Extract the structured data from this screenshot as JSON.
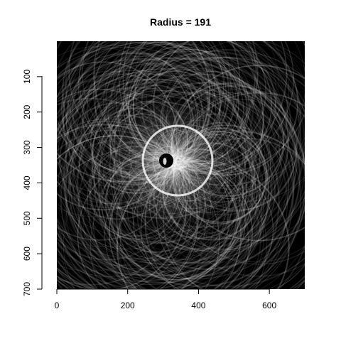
{
  "chart_data": {
    "type": "heatmap",
    "title": "Radius = 191",
    "xlabel": "",
    "ylabel": "",
    "xlim": [
      0,
      700
    ],
    "ylim": [
      700,
      0
    ],
    "x_ticks": [
      {
        "value": 0,
        "label": "0"
      },
      {
        "value": 200,
        "label": "200"
      },
      {
        "value": 400,
        "label": "400"
      },
      {
        "value": 600,
        "label": "600"
      }
    ],
    "y_ticks": [
      {
        "value": 100,
        "label": "100"
      },
      {
        "value": 200,
        "label": "200"
      },
      {
        "value": 300,
        "label": "300"
      },
      {
        "value": 400,
        "label": "400"
      },
      {
        "value": 500,
        "label": "500"
      },
      {
        "value": 600,
        "label": "600"
      },
      {
        "value": 700,
        "label": "700"
      }
    ],
    "colors": {
      "background": "#000000",
      "pattern": "#ffffff"
    }
  }
}
